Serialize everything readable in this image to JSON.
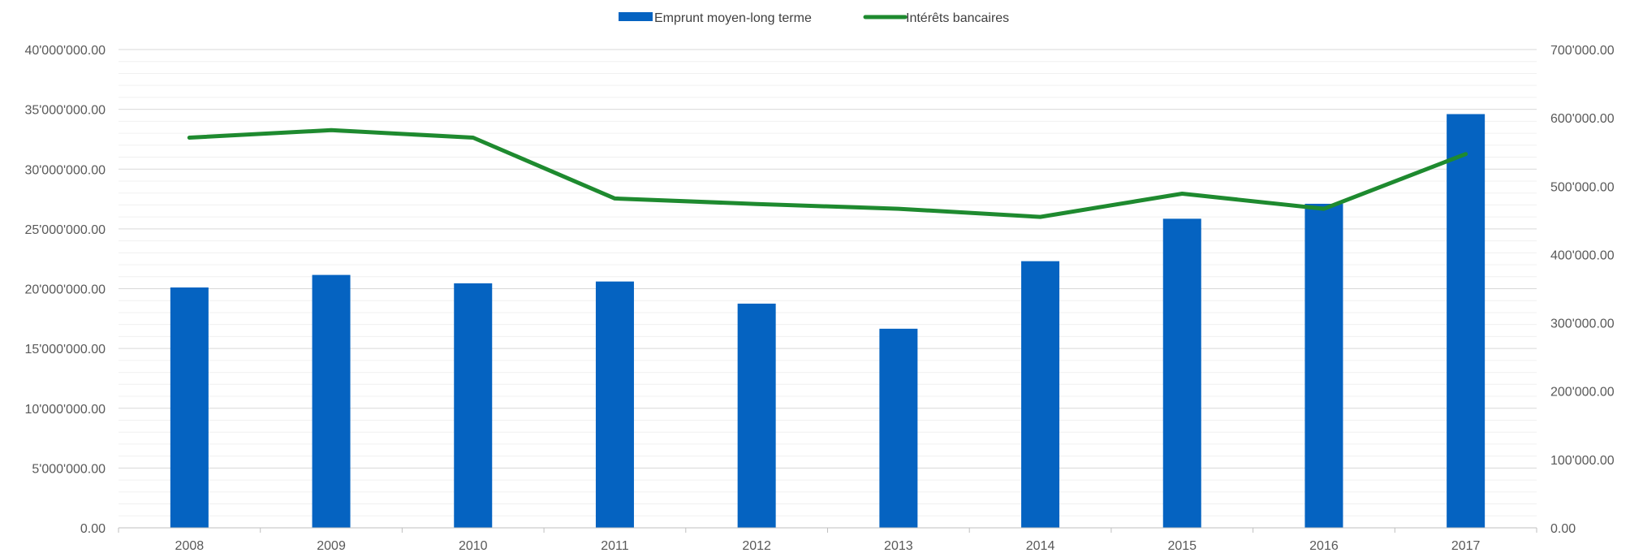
{
  "chart_data": {
    "type": "bar",
    "categories": [
      "2008",
      "2009",
      "2010",
      "2011",
      "2012",
      "2013",
      "2014",
      "2015",
      "2016",
      "2017"
    ],
    "series": [
      {
        "name": "Emprunt moyen-long terme",
        "type": "bar",
        "axis": "left",
        "color": "#0563c1",
        "values": [
          20100000,
          21150000,
          20450000,
          20600000,
          18750000,
          16650000,
          22300000,
          25850000,
          27100000,
          34600000
        ]
      },
      {
        "name": "Intérêts bancaires",
        "type": "line",
        "axis": "right",
        "color": "#1e8a2f",
        "values": [
          571000,
          582000,
          571000,
          482000,
          474000,
          467000,
          455000,
          489000,
          467000,
          547000
        ]
      }
    ],
    "y_left": {
      "ylim": [
        0,
        40000000
      ],
      "ticks": [
        "0.00",
        "5'000'000.00",
        "10'000'000.00",
        "15'000'000.00",
        "20'000'000.00",
        "25'000'000.00",
        "30'000'000.00",
        "35'000'000.00",
        "40'000'000.00"
      ]
    },
    "y_right": {
      "ylim": [
        0,
        700000
      ],
      "ticks": [
        "0.00",
        "100'000.00",
        "200'000.00",
        "300'000.00",
        "400'000.00",
        "500'000.00",
        "600'000.00",
        "700'000.00"
      ]
    },
    "legend": "top-center",
    "grid": true,
    "title": "",
    "xlabel": "",
    "ylabel": ""
  }
}
